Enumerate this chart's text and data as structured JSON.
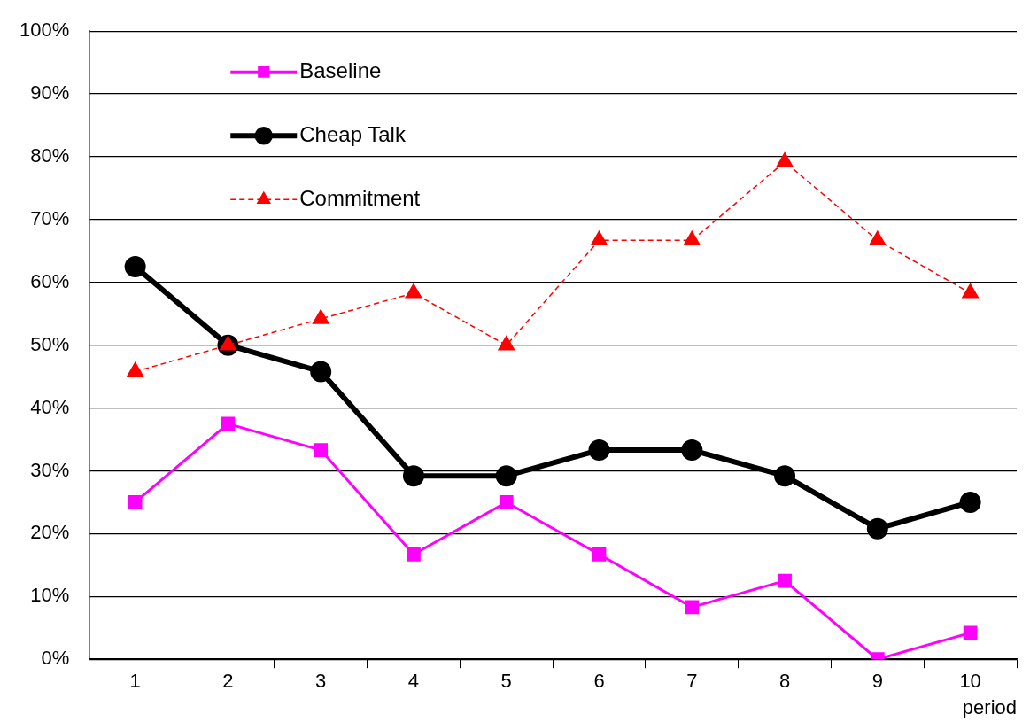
{
  "chart_data": {
    "type": "line",
    "xlabel": "period",
    "categories": [
      "1",
      "2",
      "3",
      "4",
      "5",
      "6",
      "7",
      "8",
      "9",
      "10"
    ],
    "series": [
      {
        "name": "Baseline",
        "color": "#ff00ff",
        "marker": "square",
        "line_style": "solid",
        "values": [
          25,
          37.5,
          33.3,
          16.7,
          25,
          16.7,
          8.3,
          12.5,
          0,
          4.2
        ]
      },
      {
        "name": "Cheap Talk",
        "color": "#000000",
        "marker": "circle",
        "line_style": "solid",
        "values": [
          62.5,
          50,
          45.8,
          29.2,
          29.2,
          33.3,
          33.3,
          29.2,
          20.8,
          25
        ]
      },
      {
        "name": "Commitment",
        "color": "#ff0000",
        "marker": "triangle",
        "line_style": "dashed",
        "values": [
          45.8,
          50,
          54.2,
          58.3,
          50,
          66.7,
          66.7,
          79.2,
          66.7,
          58.3
        ]
      }
    ],
    "ylim": [
      0,
      100
    ],
    "yticks": [
      {
        "value": 0,
        "label": "0%"
      },
      {
        "value": 10,
        "label": "10%"
      },
      {
        "value": 20,
        "label": "20%"
      },
      {
        "value": 30,
        "label": "30%"
      },
      {
        "value": 40,
        "label": "40%"
      },
      {
        "value": 50,
        "label": "50%"
      },
      {
        "value": 60,
        "label": "60%"
      },
      {
        "value": 70,
        "label": "70%"
      },
      {
        "value": 80,
        "label": "80%"
      },
      {
        "value": 90,
        "label": "90%"
      },
      {
        "value": 100,
        "label": "100%"
      }
    ],
    "grid": "y",
    "legend": "top left"
  }
}
